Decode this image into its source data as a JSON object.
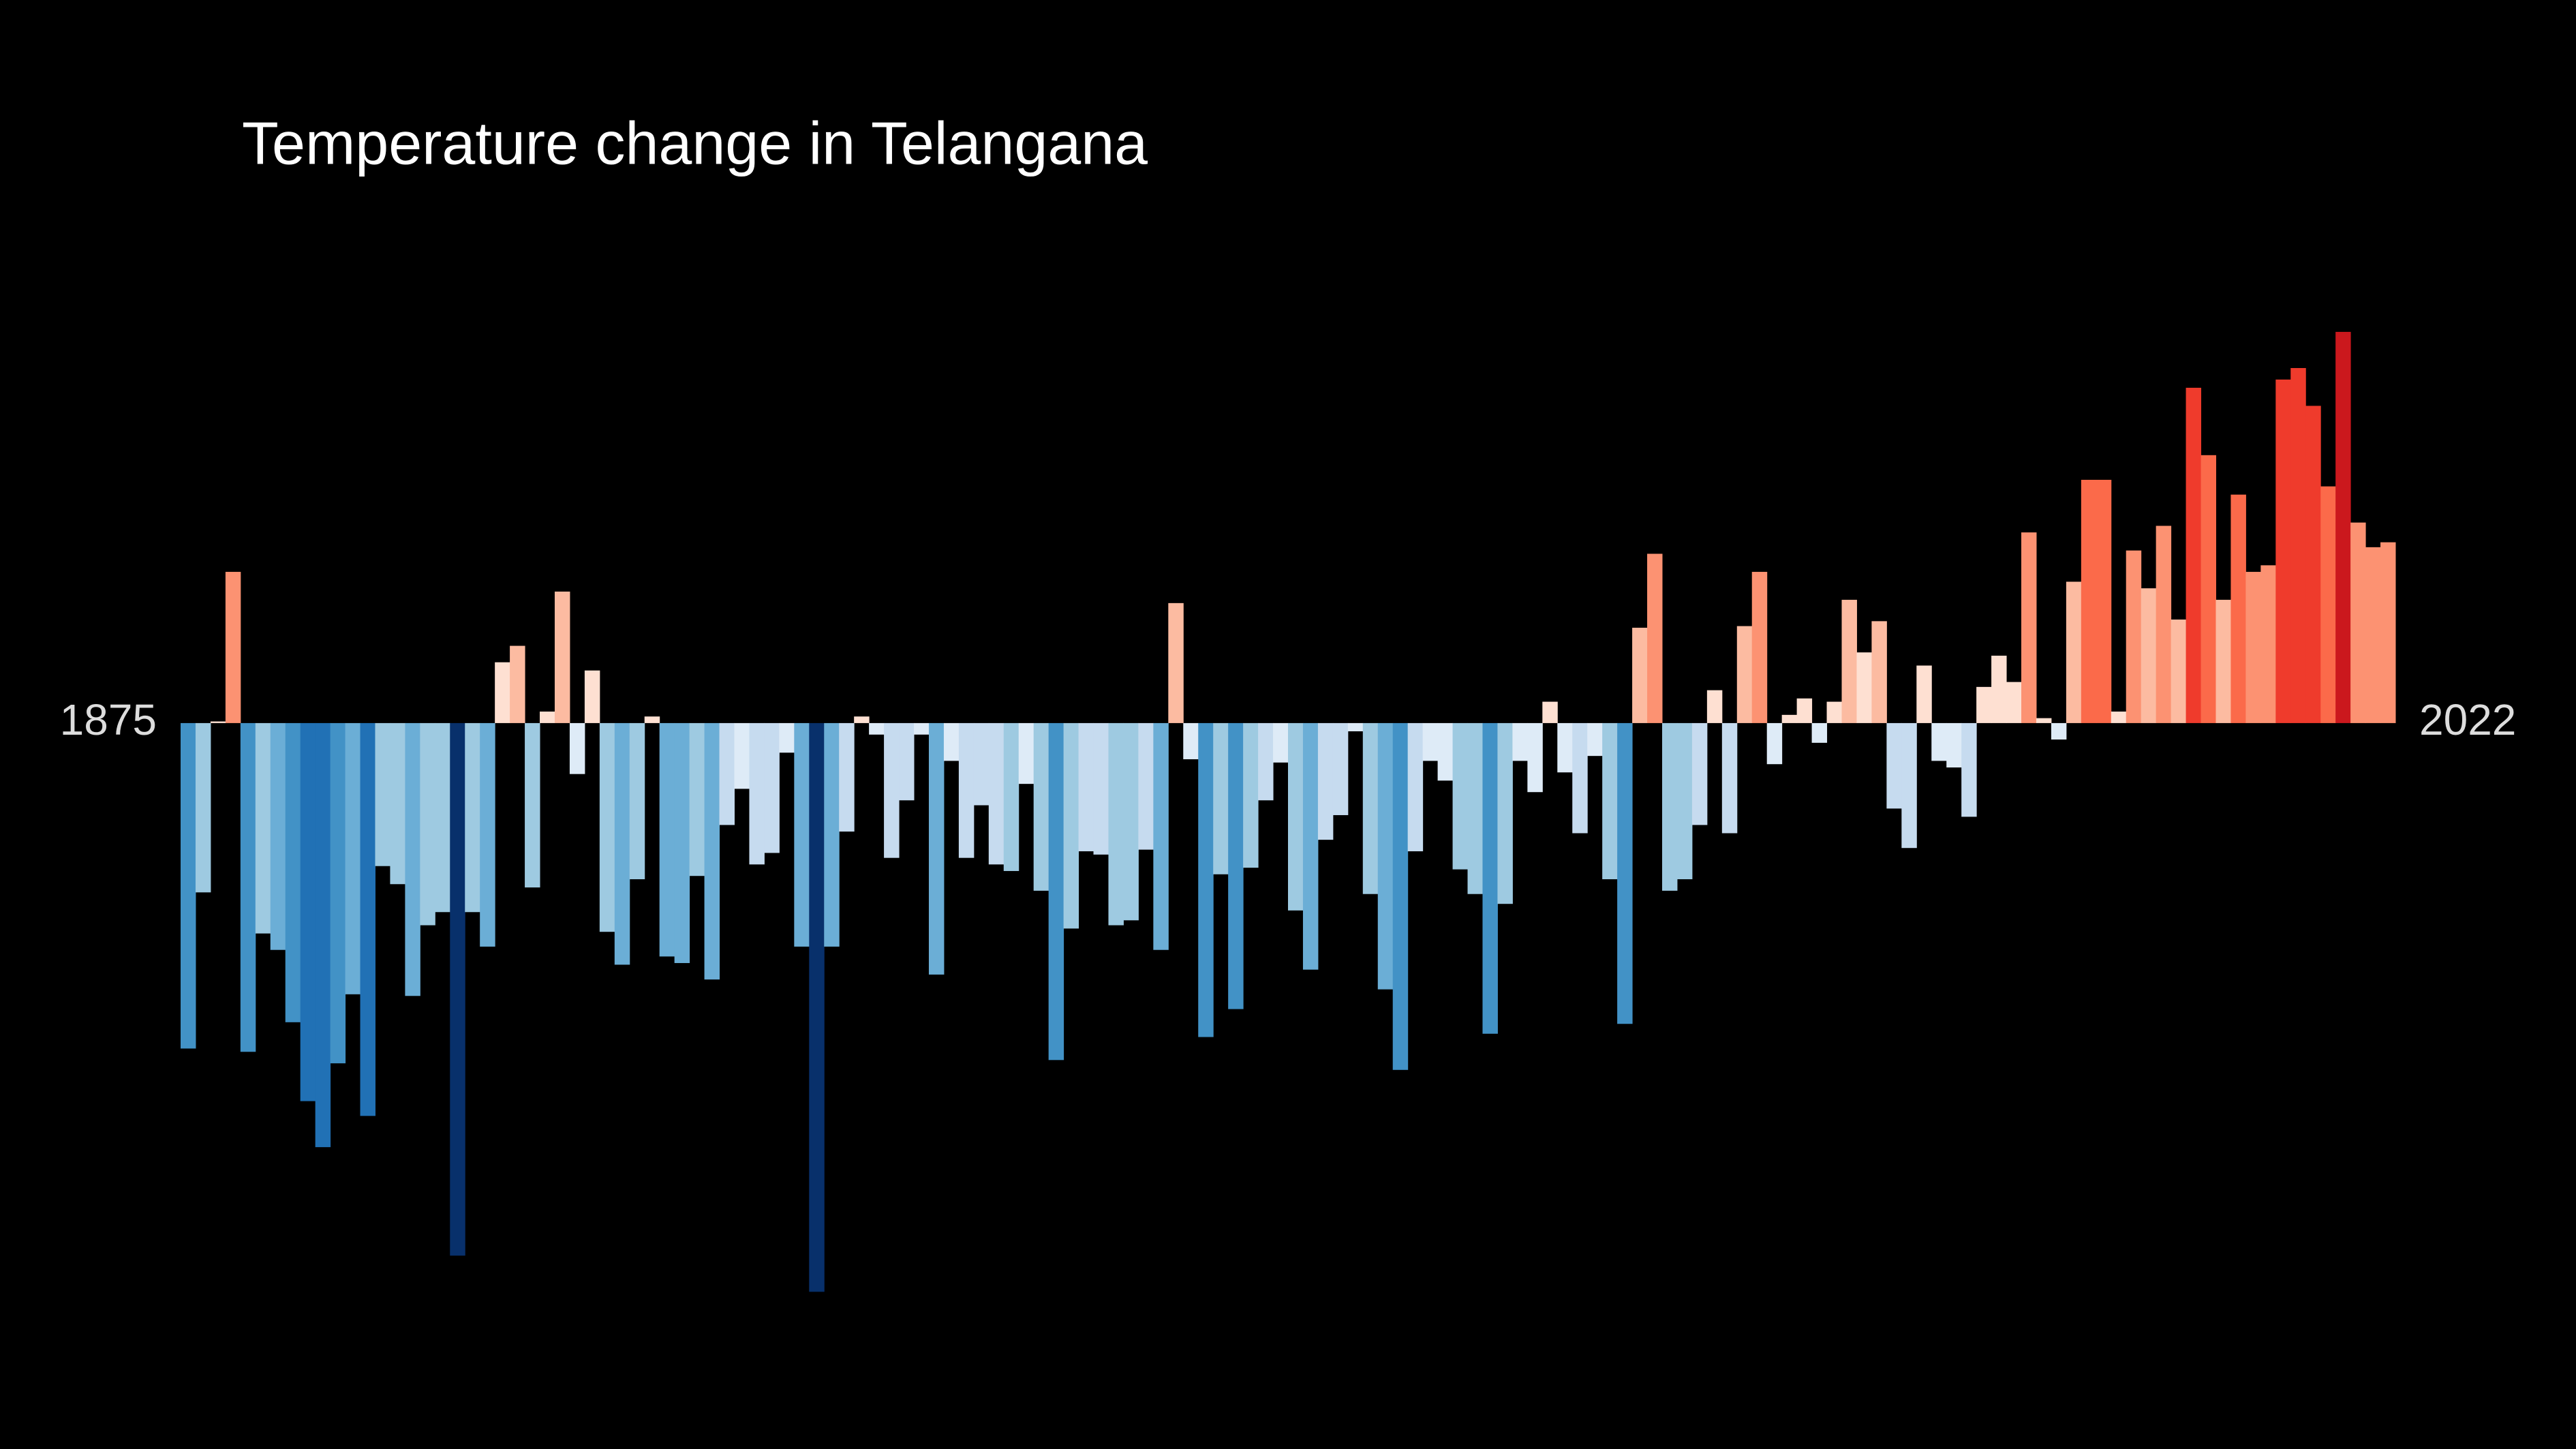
{
  "chart_data": {
    "type": "bar",
    "title": "Temperature change in Telangana",
    "categories": [
      "1875",
      null,
      null,
      null,
      null,
      null,
      null,
      null,
      null,
      null,
      null,
      null,
      null,
      null,
      null,
      null,
      null,
      null,
      null,
      null,
      null,
      null,
      null,
      null,
      null,
      null,
      null,
      null,
      null,
      null,
      null,
      null,
      null,
      null,
      null,
      null,
      null,
      null,
      null,
      null,
      null,
      null,
      null,
      null,
      null,
      null,
      null,
      null,
      null,
      null,
      null,
      null,
      null,
      null,
      null,
      null,
      null,
      null,
      null,
      null,
      null,
      null,
      null,
      null,
      null,
      null,
      null,
      null,
      null,
      null,
      null,
      null,
      null,
      null,
      null,
      null,
      null,
      null,
      null,
      null,
      null,
      null,
      null,
      null,
      null,
      null,
      null,
      null,
      null,
      null,
      null,
      null,
      null,
      null,
      null,
      null,
      null,
      null,
      null,
      null,
      null,
      null,
      null,
      null,
      null,
      null,
      null,
      null,
      null,
      null,
      null,
      null,
      null,
      null,
      null,
      null,
      null,
      null,
      null,
      null,
      null,
      null,
      null,
      null,
      null,
      null,
      null,
      null,
      null,
      null,
      null,
      null,
      null,
      null,
      null,
      null,
      null,
      null,
      null,
      null,
      null,
      null,
      null,
      null,
      null,
      null,
      null,
      "2022"
    ],
    "values": [
      -1.98,
      -1.03,
      0.01,
      0.92,
      -2.0,
      -1.28,
      -1.38,
      -1.82,
      -2.3,
      -2.58,
      -2.07,
      -1.65,
      -2.39,
      -0.87,
      -0.98,
      -1.66,
      -1.23,
      -1.15,
      -3.24,
      -1.15,
      -1.36,
      0.37,
      0.47,
      -1.0,
      0.07,
      0.8,
      -0.31,
      0.32,
      -1.27,
      -1.47,
      -0.95,
      0.04,
      -1.42,
      -1.46,
      -0.93,
      -1.56,
      -0.62,
      -0.4,
      -0.86,
      -0.79,
      -0.18,
      -1.36,
      -3.46,
      -1.36,
      -0.66,
      0.04,
      -0.07,
      -0.82,
      -0.47,
      -0.07,
      -1.53,
      -0.23,
      -0.82,
      -0.5,
      -0.86,
      -0.9,
      -0.37,
      -1.02,
      -2.05,
      -1.25,
      -0.78,
      -0.8,
      -1.23,
      -1.2,
      -0.77,
      -1.38,
      0.73,
      -0.22,
      -1.91,
      -0.92,
      -1.74,
      -0.88,
      -0.47,
      -0.24,
      -1.14,
      -1.5,
      -0.71,
      -0.56,
      -0.05,
      -1.04,
      -1.62,
      -2.11,
      -0.78,
      -0.23,
      -0.35,
      -0.89,
      -1.04,
      -1.89,
      -1.1,
      -0.23,
      -0.42,
      0.13,
      -0.3,
      -0.67,
      -0.2,
      -0.95,
      -1.83,
      0.58,
      1.03,
      -1.02,
      -0.95,
      -0.62,
      0.2,
      -0.67,
      0.59,
      0.92,
      -0.25,
      0.05,
      0.15,
      -0.12,
      0.13,
      0.75,
      0.43,
      0.62,
      -0.52,
      -0.76,
      0.35,
      -0.23,
      -0.27,
      -0.57,
      0.22,
      0.41,
      0.25,
      1.16,
      0.03,
      -0.1,
      0.86,
      1.48,
      1.48,
      0.07,
      1.05,
      0.82,
      1.2,
      0.63,
      2.04,
      1.63,
      0.75,
      1.39,
      0.92,
      0.96,
      2.09,
      2.16,
      1.93,
      1.44,
      2.38,
      1.22,
      1.07,
      1.1
    ],
    "ylim": [
      -3.5,
      2.5
    ],
    "palette": [
      "#08306b",
      "#08519c",
      "#2171b5",
      "#4292c6",
      "#6baed6",
      "#9ecae1",
      "#c6dbef",
      "#deebf7",
      "#fee0d2",
      "#fcbba1",
      "#fc9272",
      "#fb6a4a",
      "#ef3b2c",
      "#cb181d",
      "#a50f15",
      "#67000d"
    ]
  }
}
